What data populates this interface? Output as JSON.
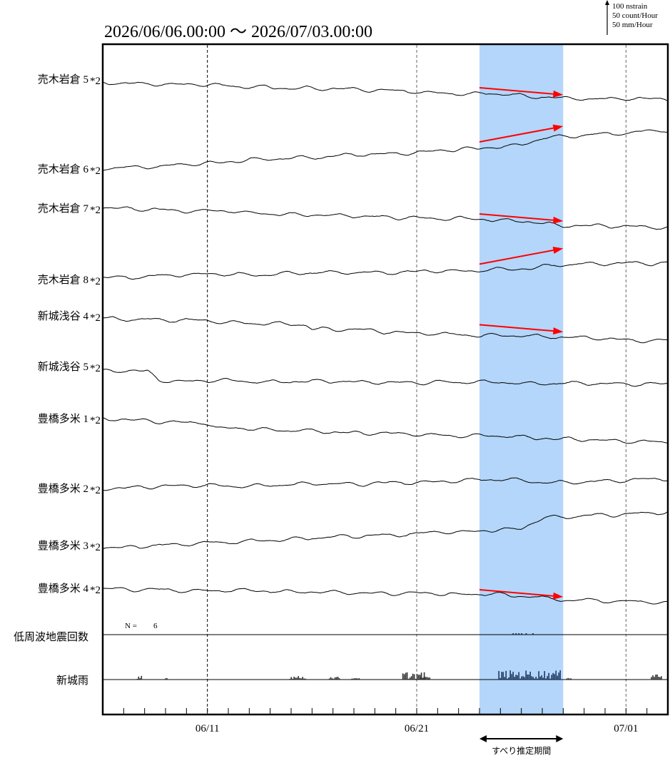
{
  "chart_data": {
    "type": "line",
    "period_title": "2026/06/06.00:00 〜 2026/07/03.00:00",
    "x_range": [
      "2026-06-06",
      "2026-07-03"
    ],
    "scale_legend": [
      "100 nstrain",
      "50 count/Hour",
      "50 mm/Hour"
    ],
    "x_ticks": [
      {
        "date": "2026-06-11",
        "label": "06/11"
      },
      {
        "date": "2026-06-21",
        "label": "06/21"
      },
      {
        "date": "2026-07-01",
        "label": "07/01"
      }
    ],
    "highlight_period": {
      "start": "2026-06-24",
      "end": "2026-06-28",
      "color": "#b3d6fa",
      "label": "すべり推定期間"
    },
    "trend_color": "#ff0000",
    "series": [
      {
        "name": "売木岩倉 5",
        "suffix": "*2",
        "trend": "down"
      },
      {
        "name": "売木岩倉 6",
        "suffix": "*2",
        "trend": "up"
      },
      {
        "name": "売木岩倉 7",
        "suffix": "*2",
        "trend": "down"
      },
      {
        "name": "売木岩倉 8",
        "suffix": "*2",
        "trend": "up"
      },
      {
        "name": "新城浅谷 4",
        "suffix": "*2",
        "trend": "down"
      },
      {
        "name": "新城浅谷 5",
        "suffix": "*2",
        "trend": null
      },
      {
        "name": "豊橋多米 1",
        "suffix": "*2",
        "trend": null
      },
      {
        "name": "豊橋多米 2",
        "suffix": "*2",
        "trend": null
      },
      {
        "name": "豊橋多米 3",
        "suffix": "*2",
        "trend": null
      },
      {
        "name": "豊橋多米 4",
        "suffix": "*2",
        "trend": "down"
      }
    ],
    "lfe_panel": {
      "name": "低周波地震回数",
      "count_label": "N =",
      "count": "6"
    },
    "rain_panel": {
      "name": "新城雨"
    }
  }
}
